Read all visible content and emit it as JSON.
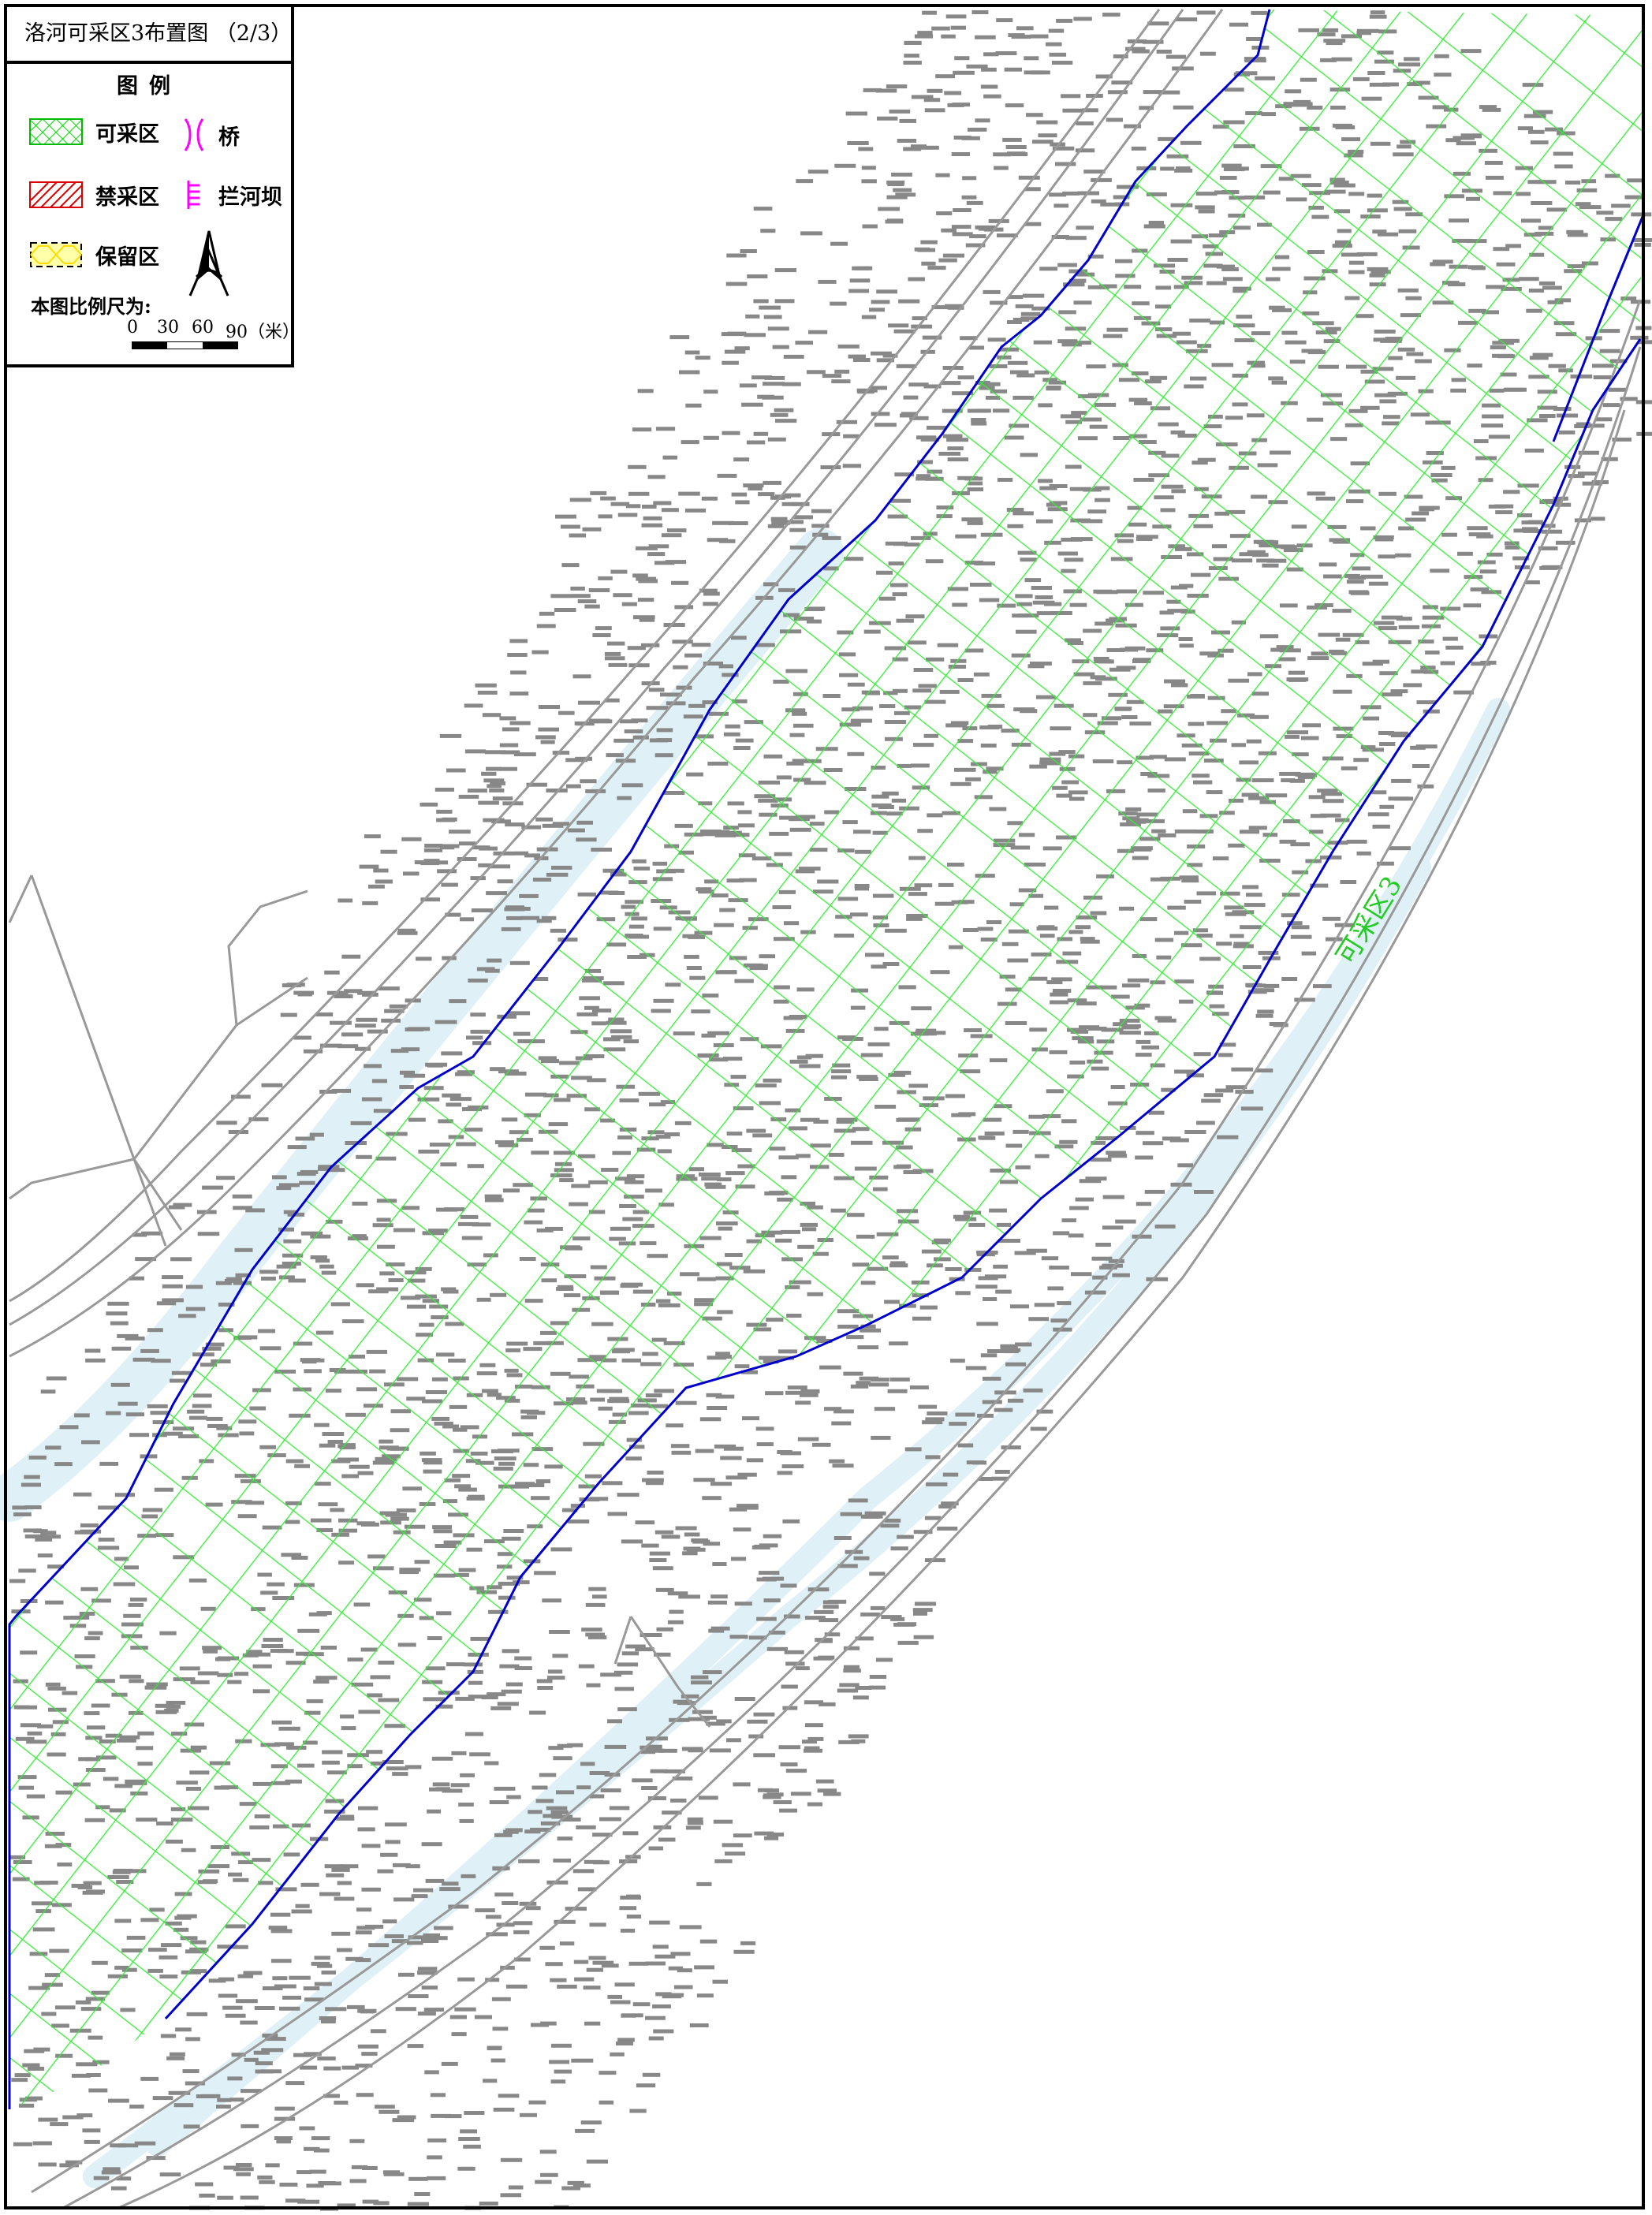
{
  "title": "洛河可采区3布置图 （2/3）",
  "legend": {
    "heading": "图例",
    "items": [
      {
        "label": "可采区",
        "symbol": "green-crosshatch",
        "color": "#00dd00"
      },
      {
        "label": "禁采区",
        "symbol": "red-diagonal-hatch",
        "color": "#dd0000"
      },
      {
        "label": "保留区",
        "symbol": "yellow-dashed-box",
        "color": "#ffee00"
      },
      {
        "label": "桥",
        "symbol": "bridge-icon",
        "color": "#ff00ff"
      },
      {
        "label": "拦河坝",
        "symbol": "dam-icon",
        "color": "#ff00ff"
      }
    ],
    "north_arrow": "north-arrow-icon",
    "scale": {
      "text": "本图比例尺为:",
      "ticks": [
        "0",
        "30",
        "60",
        "90（米）"
      ]
    }
  },
  "map": {
    "zone_label": "可采区3",
    "colors": {
      "grid": "#33ee33",
      "boundary": "#0000cc",
      "river": "#dff1f7",
      "survey": "#888888"
    }
  }
}
